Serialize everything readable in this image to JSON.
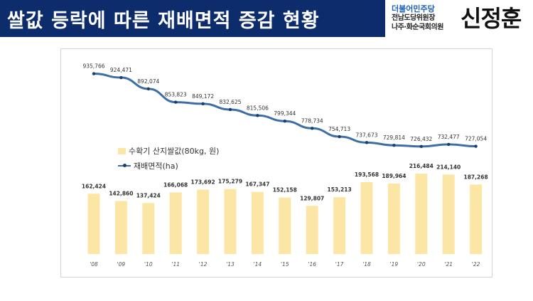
{
  "header": {
    "title": "쌀값 등락에 따른 재배면적 증감 현황",
    "party": "더불어민주당",
    "role_line1": "전남도당위원장",
    "role_line2": "나주·화순국회의원",
    "name": "신정훈"
  },
  "chart_data": {
    "type": "bar+line",
    "categories": [
      "'08",
      "'09",
      "'10",
      "'11",
      "'12",
      "'13",
      "'14",
      "'15",
      "'16",
      "'17",
      "'18",
      "'19",
      "'20",
      "'21",
      "'22"
    ],
    "series": [
      {
        "name": "수확기 산지쌀값(80kg, 원)",
        "type": "bar",
        "color": "#fce6a5",
        "values": [
          162424,
          142860,
          137424,
          166068,
          173692,
          175279,
          167347,
          152158,
          129807,
          153213,
          193568,
          189964,
          216484,
          214140,
          187268
        ],
        "labels": [
          "162,424",
          "142,860",
          "137,424",
          "166,068",
          "173,692",
          "175,279",
          "167,347",
          "152,158",
          "129,807",
          "153,213",
          "193,568",
          "189,964",
          "216,484",
          "214,140",
          "187,268"
        ]
      },
      {
        "name": "재배면적(ha)",
        "type": "line",
        "color": "#3d6ea6",
        "values": [
          935766,
          924471,
          892074,
          853823,
          849172,
          832625,
          815506,
          799344,
          778734,
          754713,
          737673,
          729814,
          726432,
          732477,
          727054
        ],
        "labels": [
          "935,766",
          "924,471",
          "892,074",
          "853,823",
          "849,172",
          "832,625",
          "815,506",
          "799,344",
          "778,734",
          "754,713",
          "737,673",
          "729,814",
          "726,432",
          "732,477",
          "727,054"
        ]
      }
    ],
    "legend_position": "middle-left",
    "grid": false,
    "bar_axis_range": [
      0,
      230000
    ],
    "line_axis_range": [
      720000,
      945000
    ]
  }
}
